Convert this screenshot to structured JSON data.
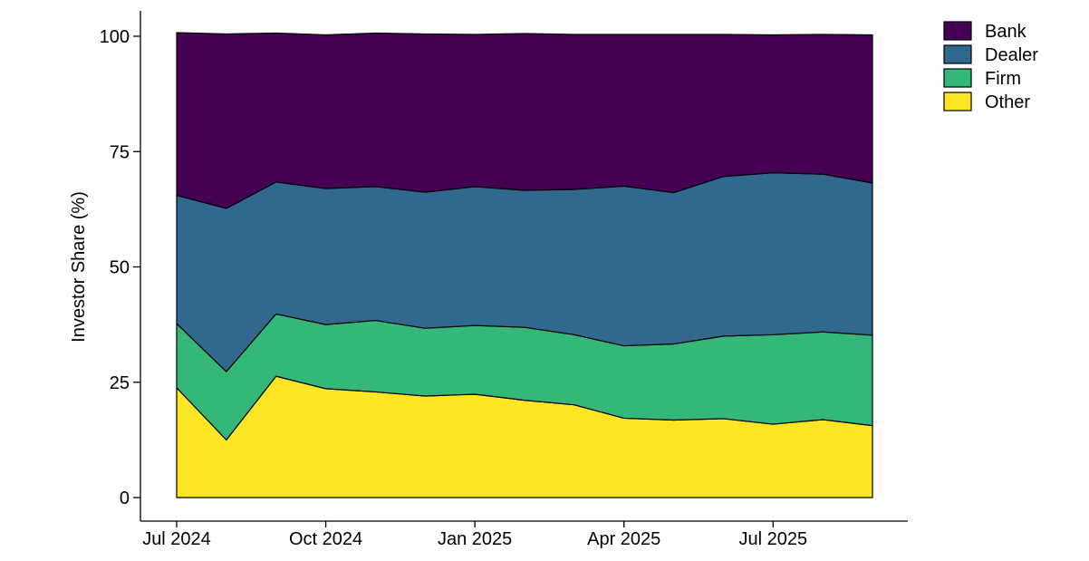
{
  "chart_data": {
    "type": "area",
    "stacked": true,
    "title": "",
    "xlabel": "",
    "ylabel": "Investor Share (%)",
    "ylim": [
      0,
      100
    ],
    "x": [
      "2024-07",
      "2024-08",
      "2024-09",
      "2024-10",
      "2024-11",
      "2024-12",
      "2025-01",
      "2025-02",
      "2025-03",
      "2025-04",
      "2025-05",
      "2025-06",
      "2025-07",
      "2025-08",
      "2025-09"
    ],
    "x_ticks": [
      {
        "date": "2024-07",
        "label": "Jul 2024"
      },
      {
        "date": "2024-10",
        "label": "Oct 2024"
      },
      {
        "date": "2025-01",
        "label": "Jan 2025"
      },
      {
        "date": "2025-04",
        "label": "Apr 2025"
      },
      {
        "date": "2025-07",
        "label": "Jul 2025"
      }
    ],
    "y_ticks": [
      0,
      25,
      50,
      75,
      100
    ],
    "series": [
      {
        "name": "Other",
        "color": "#fde725",
        "values": [
          23.8,
          12.5,
          26.3,
          23.6,
          22.9,
          22.0,
          22.4,
          21.1,
          20.1,
          17.2,
          16.8,
          17.1,
          15.9,
          16.9,
          15.6
        ]
      },
      {
        "name": "Firm",
        "color": "#35b779",
        "values": [
          13.9,
          14.8,
          13.5,
          13.9,
          15.5,
          14.7,
          14.9,
          15.8,
          15.2,
          15.7,
          16.5,
          17.9,
          19.4,
          19.0,
          19.6
        ]
      },
      {
        "name": "Dealer",
        "color": "#31688e",
        "values": [
          27.8,
          35.4,
          28.6,
          29.5,
          29.0,
          29.5,
          30.1,
          29.7,
          31.5,
          34.6,
          32.8,
          34.6,
          35.1,
          34.2,
          33.0
        ]
      },
      {
        "name": "Bank",
        "color": "#440154",
        "values": [
          35.3,
          37.8,
          32.3,
          33.3,
          33.3,
          34.3,
          33.0,
          34.0,
          33.6,
          32.9,
          34.3,
          30.8,
          29.9,
          30.3,
          32.1
        ]
      }
    ],
    "legend": {
      "placement": "top-right",
      "order": [
        "Bank",
        "Dealer",
        "Firm",
        "Other"
      ]
    },
    "grid": false
  }
}
